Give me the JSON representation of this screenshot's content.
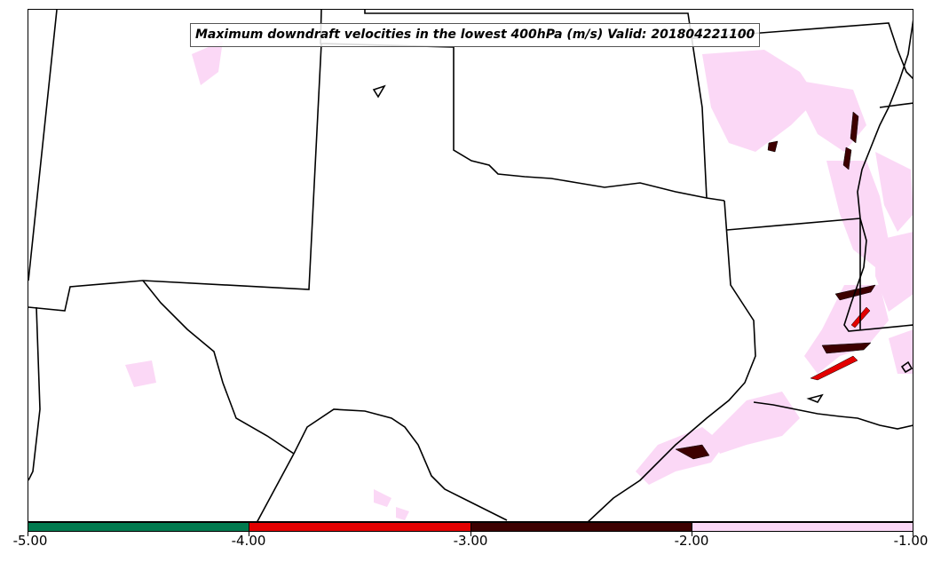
{
  "title": "Maximum downdraft velocities in the lowest 400hPa (m/s) Valid: 201804221100",
  "colorbar": {
    "colors": [
      "#007a4f",
      "#e30000",
      "#3d0000",
      "#fbd8f6"
    ],
    "tick_labels": [
      "-5.00",
      "-4.00",
      "-3.00",
      "-2.00",
      "-1.00"
    ]
  },
  "chart_data": {
    "type": "heatmap",
    "title": "Maximum downdraft velocities in the lowest 400hPa (m/s) Valid: 201804221100",
    "valid_time": "201804221100",
    "units": "m/s",
    "levels": [
      -5.0,
      -4.0,
      -3.0,
      -2.0,
      -1.0
    ],
    "level_colors": [
      "#007a4f",
      "#e30000",
      "#3d0000",
      "#fbd8f6"
    ]
  },
  "map": {
    "boundaries_color": "#000000",
    "weak_downdraft_color": "#fbd8f6",
    "moderate_downdraft_color": "#3d0000",
    "strong_downdraft_color": "#e30000"
  }
}
